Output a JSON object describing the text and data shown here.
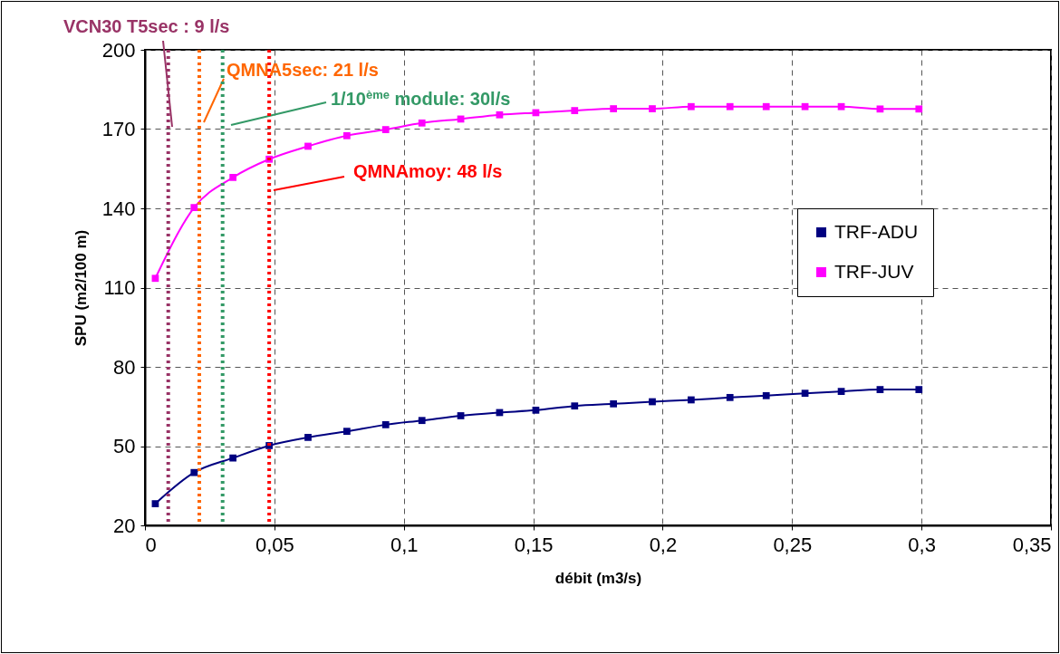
{
  "chart_data": {
    "type": "line",
    "xlabel": "débit (m3/s)",
    "ylabel": "SPU (m2/100 m)",
    "x": [
      0.004,
      0.019,
      0.034,
      0.048,
      0.063,
      0.078,
      0.093,
      0.107,
      0.122,
      0.137,
      0.151,
      0.166,
      0.181,
      0.196,
      0.211,
      0.226,
      0.24,
      0.255,
      0.269,
      0.284,
      0.299
    ],
    "series": [
      {
        "name": "TRF-ADU",
        "color": "#000080",
        "values": [
          28.2,
          40.0,
          45.5,
          50.2,
          53.3,
          55.6,
          58.1,
          59.7,
          61.5,
          62.7,
          63.6,
          65.2,
          66.0,
          66.8,
          67.5,
          68.4,
          69.1,
          70.0,
          70.7,
          71.4,
          71.4
        ]
      },
      {
        "name": "TRF-JUV",
        "color": "#ff00ff",
        "values": [
          113.5,
          140.3,
          151.7,
          158.6,
          163.5,
          167.5,
          169.8,
          172.3,
          173.8,
          175.4,
          176.2,
          177.0,
          177.7,
          177.7,
          178.5,
          178.5,
          178.5,
          178.5,
          178.5,
          177.6,
          177.6
        ]
      }
    ],
    "xlim": [
      0,
      0.35
    ],
    "xticks": [
      0,
      {
        "value": 0.05,
        "label": "0,05"
      },
      {
        "value": 0.1,
        "label": "0,1"
      },
      {
        "value": 0.15,
        "label": "0,15"
      },
      {
        "value": 0.2,
        "label": "0,2"
      },
      {
        "value": 0.25,
        "label": "0,25"
      },
      {
        "value": 0.3,
        "label": "0,3"
      },
      {
        "value": 0.35,
        "label": "0,35"
      }
    ],
    "ylim": [
      20,
      200
    ],
    "yticks": [
      20,
      50,
      80,
      110,
      140,
      170,
      200
    ],
    "ref_lines": [
      {
        "axis": "x",
        "value": 0.009,
        "label": "VCN30 T5sec : 9 l/s",
        "color": "#993366",
        "line_style": "dotted"
      },
      {
        "axis": "x",
        "value": 0.021,
        "label": "QMNA5sec: 21 l/s",
        "color": "#ff6600",
        "line_style": "dotted"
      },
      {
        "axis": "x",
        "value": 0.03,
        "label": "1/10$^{ème}$ module: 30l/s",
        "color": "#339966",
        "line_style": "dotted"
      },
      {
        "axis": "x",
        "value": 0.048,
        "label": "QMNAmoy: 48 l/s",
        "color": "#ff0000",
        "line_style": "dotted"
      }
    ],
    "grid": true,
    "legend": "right",
    "marker": "square",
    "line_style": "solid"
  }
}
